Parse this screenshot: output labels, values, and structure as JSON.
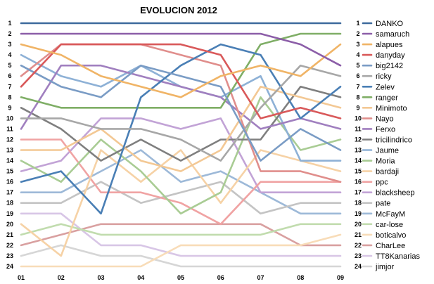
{
  "chart_data": {
    "type": "line",
    "title": "EVOLUCION 2012",
    "xlabel": "",
    "ylabel": "",
    "x": [
      "01",
      "02",
      "03",
      "04",
      "05",
      "06",
      "07",
      "08",
      "09"
    ],
    "y_ticks": [
      "1",
      "2",
      "3",
      "4",
      "5",
      "6",
      "7",
      "8",
      "9",
      "10",
      "11",
      "12",
      "13",
      "14",
      "15",
      "16",
      "17",
      "18",
      "19",
      "20",
      "21",
      "22",
      "23",
      "24"
    ],
    "ylim": [
      24,
      1
    ],
    "y_inverted": true,
    "grid": false,
    "legend_placement": "right",
    "series": [
      {
        "name": "DANKO",
        "color": "#3d6a9c",
        "values": [
          1,
          1,
          1,
          1,
          1,
          1,
          1,
          1,
          1
        ]
      },
      {
        "name": "samaruch",
        "color": "#8c5ea8",
        "values": [
          2,
          2,
          2,
          2,
          2,
          2,
          2,
          3,
          5
        ]
      },
      {
        "name": "alapues",
        "color": "#f0b466",
        "values": [
          3,
          4,
          6,
          7,
          8,
          6,
          5,
          6,
          3
        ]
      },
      {
        "name": "danyday",
        "color": "#d9595a",
        "values": [
          7,
          3,
          3,
          3,
          3,
          4,
          10,
          9,
          10
        ]
      },
      {
        "name": "big2142",
        "color": "#7a9cc5",
        "values": [
          5,
          7,
          8,
          5,
          6,
          7,
          14,
          11,
          13
        ]
      },
      {
        "name": "ricky",
        "color": "#a7a7a7",
        "values": [
          10,
          10,
          11,
          11,
          12,
          14,
          9,
          5,
          6
        ]
      },
      {
        "name": "Zelev",
        "color": "#4a7fb5",
        "values": [
          16,
          15,
          19,
          8,
          5,
          3,
          4,
          10,
          7
        ]
      },
      {
        "name": "ranger",
        "color": "#7fae66",
        "values": [
          8,
          9,
          9,
          9,
          9,
          9,
          3,
          2,
          2
        ]
      },
      {
        "name": "Minimoto",
        "color": "#f3c894",
        "values": [
          13,
          13,
          11,
          14,
          15,
          13,
          7,
          8,
          9
        ]
      },
      {
        "name": "Nayo",
        "color": "#e08e8c",
        "values": [
          6,
          3,
          3,
          3,
          4,
          5,
          15,
          15,
          16
        ]
      },
      {
        "name": "Ferxo",
        "color": "#a07fbf",
        "values": [
          11,
          5,
          5,
          6,
          7,
          8,
          11,
          10,
          11
        ]
      },
      {
        "name": "tricilindrico",
        "color": "#7f7f7f",
        "values": [
          9,
          11,
          14,
          12,
          14,
          12,
          12,
          7,
          8
        ]
      },
      {
        "name": "Jaume",
        "color": "#8eb1d6",
        "values": [
          4,
          6,
          7,
          5,
          7,
          8,
          6,
          14,
          14
        ]
      },
      {
        "name": "Moria",
        "color": "#a9cc94",
        "values": [
          14,
          16,
          12,
          15,
          19,
          17,
          8,
          13,
          12
        ]
      },
      {
        "name": "bardaji",
        "color": "#f6d2a6",
        "values": [
          20,
          23,
          13,
          16,
          13,
          18,
          13,
          14,
          15
        ]
      },
      {
        "name": "ppc",
        "color": "#f0a3a3",
        "values": [
          12,
          12,
          17,
          17,
          18,
          20,
          16,
          16,
          16
        ]
      },
      {
        "name": "blacksheep",
        "color": "#c2a3d6",
        "values": [
          15,
          14,
          10,
          10,
          11,
          10,
          17,
          17,
          17
        ]
      },
      {
        "name": "pate",
        "color": "#c4c4c4",
        "values": [
          18,
          18,
          16,
          18,
          17,
          16,
          19,
          18,
          18
        ]
      },
      {
        "name": "McFayM",
        "color": "#9db9d8",
        "values": [
          17,
          17,
          15,
          13,
          16,
          15,
          17,
          19,
          19
        ]
      },
      {
        "name": "car-lose",
        "color": "#c1dcae",
        "values": [
          21,
          20,
          21,
          21,
          21,
          21,
          21,
          20,
          20
        ]
      },
      {
        "name": "boticalvo",
        "color": "#f8dcb8",
        "values": [
          24,
          24,
          24,
          24,
          22,
          22,
          22,
          22,
          21
        ]
      },
      {
        "name": "CharLee",
        "color": "#d9a0a0",
        "values": [
          22,
          21,
          20,
          20,
          20,
          20,
          20,
          22,
          22
        ]
      },
      {
        "name": "TT8Kanarias",
        "color": "#d8c6e6",
        "values": [
          19,
          19,
          22,
          22,
          23,
          23,
          23,
          23,
          23
        ]
      },
      {
        "name": "jimjor",
        "color": "#d6d6d6",
        "values": [
          23,
          22,
          23,
          23,
          24,
          24,
          24,
          24,
          24
        ]
      }
    ]
  }
}
